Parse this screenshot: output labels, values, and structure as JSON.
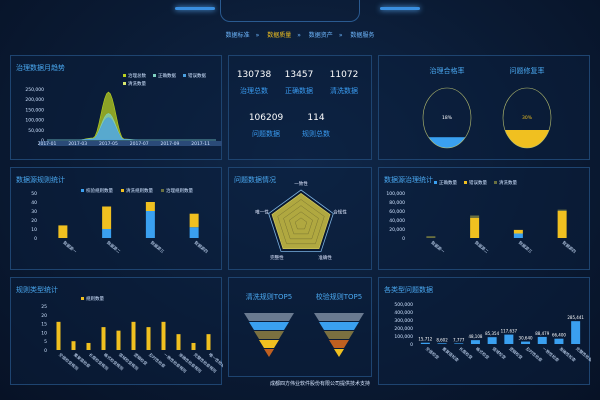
{
  "breadcrumb": [
    {
      "label": "数据标准",
      "active": false
    },
    {
      "label": "数据质量",
      "active": true
    },
    {
      "label": "数据资产",
      "active": false
    },
    {
      "label": "数据服务",
      "active": false
    }
  ],
  "trend": {
    "title": "治理数据月趋势",
    "chart_data": {
      "type": "area",
      "x": [
        "2017-01",
        "2017-02",
        "2017-03",
        "2017-04",
        "2017-05",
        "2017-06",
        "2017-07",
        "2017-08",
        "2017-09",
        "2017-10",
        "2017-11",
        "2017-12"
      ],
      "xticks": [
        "2017-01",
        "2017-03",
        "2017-05",
        "2017-07",
        "2017-09",
        "2017-11"
      ],
      "ylim": [
        0,
        250000
      ],
      "yticks": [
        "0",
        "50,000",
        "100,000",
        "150,000",
        "200,000",
        "250,000"
      ],
      "series": [
        {
          "name": "治理总数",
          "color": "#b8d020",
          "values": [
            0,
            0,
            0,
            10000,
            235000,
            5000,
            0,
            0,
            0,
            0,
            0,
            0
          ]
        },
        {
          "name": "正确数据",
          "color": "#7fd0c0",
          "values": [
            0,
            0,
            0,
            6000,
            130000,
            3000,
            0,
            0,
            0,
            0,
            0,
            0
          ]
        },
        {
          "name": "错误数据",
          "color": "#4a9fe0",
          "values": [
            0,
            0,
            0,
            5000,
            110000,
            2000,
            0,
            0,
            0,
            0,
            0,
            0
          ]
        },
        {
          "name": "清洗数量",
          "color": "#d8e870",
          "values": [
            0,
            0,
            0,
            0,
            0,
            0,
            0,
            0,
            0,
            0,
            0,
            0
          ]
        }
      ]
    }
  },
  "kpis": [
    {
      "value": "130738",
      "label": "治理总数"
    },
    {
      "value": "13457",
      "label": "正确数据"
    },
    {
      "value": "11072",
      "label": "清洗数据"
    },
    {
      "value": "106209",
      "label": "问题数据"
    },
    {
      "value": "114",
      "label": "规则总数"
    }
  ],
  "gauges": [
    {
      "title": "治理合格率",
      "value": "18%",
      "fraction": 0.18,
      "color": "#3aa0f0"
    },
    {
      "title": "问题修复率",
      "value": "30%",
      "fraction": 0.3,
      "color": "#f0c020"
    }
  ],
  "source_rules": {
    "title": "数据源规则统计",
    "chart_data": {
      "type": "bar",
      "stacked": true,
      "categories": [
        "数据源一",
        "数据源二",
        "数据源三",
        "数据源四"
      ],
      "ylim": [
        0,
        50
      ],
      "yticks": [
        "0",
        "10",
        "20",
        "30",
        "40",
        "50"
      ],
      "series": [
        {
          "name": "校验规则数量",
          "color": "#3aa0f0",
          "values": [
            0,
            10,
            30,
            12
          ]
        },
        {
          "name": "清洗规则数量",
          "color": "#f0c020",
          "values": [
            14,
            25,
            10,
            15
          ]
        },
        {
          "name": "治理规则数量",
          "color": "#6a7040",
          "values": [
            0,
            0,
            0,
            0
          ]
        }
      ]
    }
  },
  "radar": {
    "title": "问题数据情况",
    "chart_data": {
      "type": "radar",
      "axes": [
        "一致性",
        "合规性",
        "准确性",
        "完整性",
        "唯一性"
      ],
      "values": [
        0.9,
        0.9,
        0.9,
        0.9,
        0.9
      ]
    }
  },
  "source_gov": {
    "title": "数据源治理统计",
    "chart_data": {
      "type": "bar",
      "stacked": true,
      "categories": [
        "数据源一",
        "数据源二",
        "数据源三",
        "数据源四"
      ],
      "ylim": [
        0,
        100000
      ],
      "yticks": [
        "0",
        "20,000",
        "40,000",
        "60,000",
        "80,000",
        "100,000"
      ],
      "series": [
        {
          "name": "正确数量",
          "color": "#3aa0f0",
          "values": [
            0,
            0,
            10000,
            0
          ]
        },
        {
          "name": "错误数量",
          "color": "#f0c020",
          "values": [
            0,
            45000,
            8000,
            60000
          ]
        },
        {
          "name": "清洗数量",
          "color": "#6a7040",
          "values": [
            4000,
            5000,
            0,
            3000
          ]
        }
      ]
    }
  },
  "rule_types": {
    "title": "规则类型统计",
    "chart_data": {
      "type": "bar",
      "categories": [
        "空值检查规则",
        "重复值检查",
        "长度检查规则",
        "格式检查规则",
        "值域检查规则",
        "逻辑检查",
        "及时性检查",
        "一致性检查规则",
        "准确性检查规则",
        "完整性检查规则",
        "唯一性检查"
      ],
      "ylim": [
        0,
        25
      ],
      "yticks": [
        "0",
        "5",
        "10",
        "15",
        "20",
        "25"
      ],
      "series": [
        {
          "name": "规则数量",
          "color": "#f0c020",
          "values": [
            16,
            5,
            4,
            13,
            11,
            16,
            13,
            16,
            9,
            4,
            9
          ]
        }
      ]
    }
  },
  "funnels": [
    {
      "title": "清洗规则TOP5",
      "colors": [
        "#6a7a90",
        "#3aa0f0",
        "#7a7040",
        "#f0c020",
        "#c06020"
      ]
    },
    {
      "title": "校验规则TOP5",
      "colors": [
        "#6a7a90",
        "#3aa0f0",
        "#7a7040",
        "#c06020",
        "#f0c020"
      ]
    }
  ],
  "problem_types": {
    "title": "各类型问题数据",
    "chart_data": {
      "type": "bar",
      "categories": [
        "空值检查",
        "重复值检查",
        "长度检查",
        "格式检查",
        "值域检查",
        "逻辑检查",
        "及时性检查",
        "一致性检查",
        "准确性检查",
        "完整性检查"
      ],
      "ylim": [
        0,
        500000
      ],
      "yticks": [
        "0",
        "100,000",
        "200,000",
        "300,000",
        "400,000",
        "500,000"
      ],
      "labels": [
        "15,712",
        "8,602",
        "7,777",
        "48,108",
        "85,354",
        "117,637",
        "30,640",
        "88,479",
        "66,400",
        "285,441"
      ],
      "series": [
        {
          "color": "#3aa0f0",
          "values": [
            15712,
            8602,
            7777,
            48108,
            85354,
            117637,
            30640,
            88479,
            66400,
            285441
          ]
        }
      ]
    }
  },
  "footer": "成都四方伟业软件股份有限公司提供技术支持"
}
